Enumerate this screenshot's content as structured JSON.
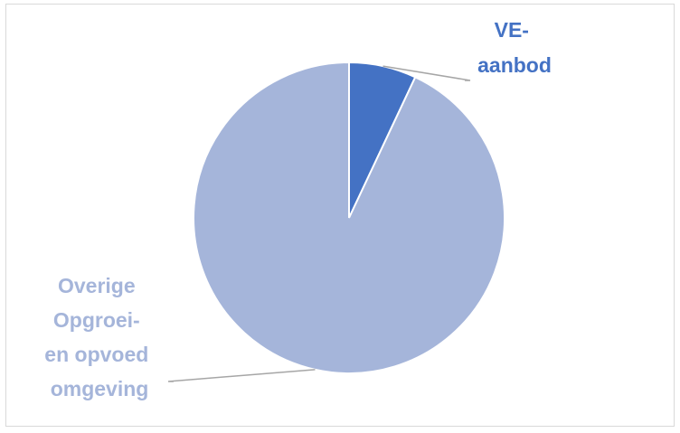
{
  "chart_data": {
    "type": "pie",
    "title": "",
    "slices": [
      {
        "label_lines": [
          "VE-",
          "aanbod"
        ],
        "value": 7,
        "color": "#4472c4",
        "label_color": "#4472c4"
      },
      {
        "label_lines": [
          "Overige",
          "Opgroei-",
          "en opvoed",
          "omgeving"
        ],
        "value": 93,
        "color": "#a5b5da",
        "label_color": "#a5b5da"
      }
    ],
    "start_angle_deg": 0,
    "direction": "clockwise",
    "legend": "none",
    "data_labels": "outside-with-leader-lines"
  }
}
